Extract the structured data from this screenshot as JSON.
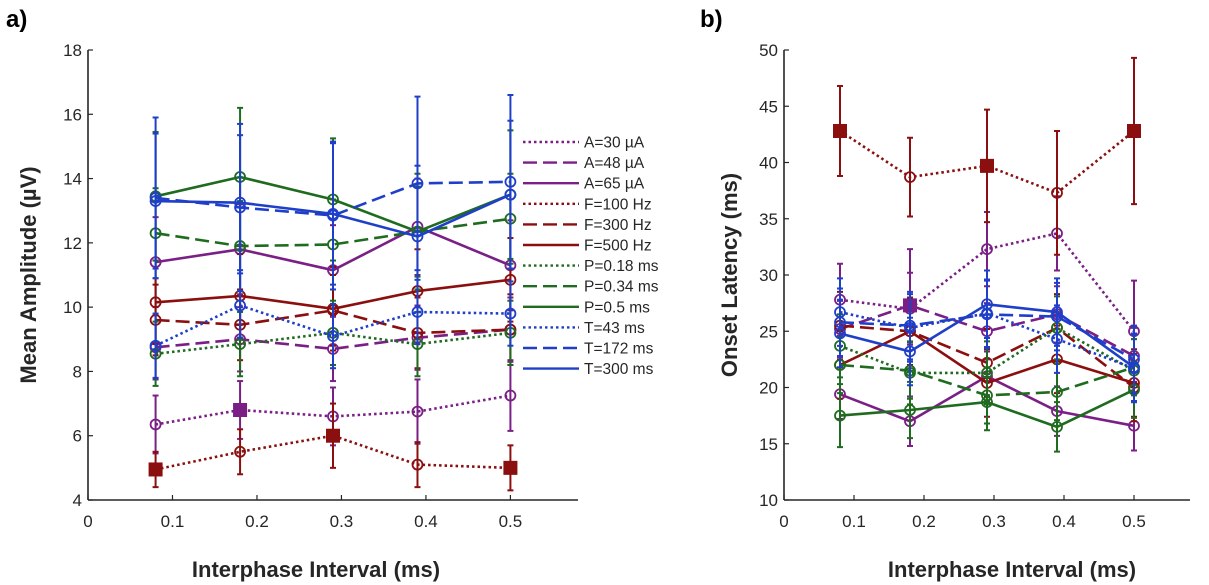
{
  "colors": {
    "A": "#7a1f86",
    "F": "#8b0f0f",
    "P": "#1f6b1f",
    "T": "#1f3fc9",
    "axis": "#262626"
  },
  "legend": [
    {
      "label": "A=30 µA",
      "color": "#7a1f86",
      "dash": "dotted"
    },
    {
      "label": "A=48 µA",
      "color": "#7a1f86",
      "dash": "dashed"
    },
    {
      "label": "A=65 µA",
      "color": "#7a1f86",
      "dash": "solid"
    },
    {
      "label": "F=100 Hz",
      "color": "#8b0f0f",
      "dash": "dotted"
    },
    {
      "label": "F=300 Hz",
      "color": "#8b0f0f",
      "dash": "dashed"
    },
    {
      "label": "F=500 Hz",
      "color": "#8b0f0f",
      "dash": "solid"
    },
    {
      "label": "P=0.18 ms",
      "color": "#1f6b1f",
      "dash": "dotted"
    },
    {
      "label": "P=0.34 ms",
      "color": "#1f6b1f",
      "dash": "dashed"
    },
    {
      "label": "P=0.5 ms",
      "color": "#1f6b1f",
      "dash": "solid"
    },
    {
      "label": "T=43 ms",
      "color": "#1f3fc9",
      "dash": "dotted"
    },
    {
      "label": "T=172 ms",
      "color": "#1f3fc9",
      "dash": "dashed"
    },
    {
      "label": "T=300 ms",
      "color": "#1f3fc9",
      "dash": "solid"
    }
  ],
  "chart_data": [
    {
      "type": "line",
      "panel_label": "a)",
      "xlabel": "Interphase Interval (ms)",
      "ylabel": "Mean Amplitude (µV)",
      "xlim": [
        0,
        0.58
      ],
      "ylim": [
        4,
        18
      ],
      "xticks": [
        0,
        0.1,
        0.2,
        0.3,
        0.4,
        0.5
      ],
      "xtick_labels": [
        "0",
        "0.1",
        "0.2",
        "0.3",
        "0.4",
        "0.5"
      ],
      "yticks": [
        4,
        6,
        8,
        10,
        12,
        14,
        16,
        18
      ],
      "ytick_labels": [
        "4",
        "6",
        "8",
        "10",
        "12",
        "14",
        "16",
        "18"
      ],
      "x": [
        0.08,
        0.18,
        0.29,
        0.39,
        0.5
      ],
      "series": [
        {
          "name": "A=30 µA",
          "color": "#7a1f86",
          "dash": "dotted",
          "y": [
            6.35,
            6.8,
            6.6,
            6.75,
            7.25
          ],
          "err": [
            0.9,
            0.9,
            0.9,
            1.0,
            1.1
          ],
          "square": [
            1
          ]
        },
        {
          "name": "A=48 µA",
          "color": "#7a1f86",
          "dash": "dashed",
          "y": [
            8.75,
            9.0,
            8.7,
            9.05,
            9.3
          ],
          "err": [
            1.0,
            1.0,
            1.0,
            1.0,
            1.0
          ],
          "square": []
        },
        {
          "name": "A=65 µA",
          "color": "#7a1f86",
          "dash": "solid",
          "y": [
            11.4,
            11.8,
            11.15,
            12.5,
            11.3
          ],
          "err": [
            1.4,
            1.4,
            1.4,
            1.5,
            1.4
          ],
          "square": []
        },
        {
          "name": "F=100 Hz",
          "color": "#8b0f0f",
          "dash": "dotted",
          "y": [
            4.95,
            5.5,
            6.0,
            5.1,
            5.0
          ],
          "err": [
            0.55,
            0.7,
            1.0,
            0.7,
            0.7
          ],
          "square": [
            0,
            2,
            4
          ]
        },
        {
          "name": "F=300 Hz",
          "color": "#8b0f0f",
          "dash": "dashed",
          "y": [
            9.6,
            9.45,
            9.9,
            9.2,
            9.3
          ],
          "err": [
            1.1,
            1.1,
            1.1,
            1.1,
            1.1
          ],
          "square": []
        },
        {
          "name": "F=500 Hz",
          "color": "#8b0f0f",
          "dash": "solid",
          "y": [
            10.15,
            10.35,
            9.95,
            10.5,
            10.85
          ],
          "err": [
            1.3,
            1.3,
            1.3,
            1.3,
            1.3
          ],
          "square": []
        },
        {
          "name": "P=0.18 ms",
          "color": "#1f6b1f",
          "dash": "dotted",
          "y": [
            8.55,
            8.85,
            9.2,
            8.85,
            9.2
          ],
          "err": [
            1.0,
            1.0,
            1.0,
            1.0,
            1.0
          ],
          "square": []
        },
        {
          "name": "P=0.34 ms",
          "color": "#1f6b1f",
          "dash": "dashed",
          "y": [
            12.3,
            11.9,
            11.95,
            12.35,
            12.75
          ],
          "err": [
            1.4,
            1.4,
            1.4,
            1.4,
            1.4
          ],
          "square": []
        },
        {
          "name": "P=0.5 ms",
          "color": "#1f6b1f",
          "dash": "solid",
          "y": [
            13.45,
            14.05,
            13.35,
            12.35,
            13.5
          ],
          "err": [
            2.0,
            2.15,
            1.9,
            1.8,
            2.0
          ],
          "square": []
        },
        {
          "name": "T=43 ms",
          "color": "#1f3fc9",
          "dash": "dotted",
          "y": [
            8.8,
            10.05,
            9.1,
            9.85,
            9.8
          ],
          "err": [
            1.0,
            1.0,
            1.0,
            1.0,
            1.0
          ],
          "square": []
        },
        {
          "name": "T=172 ms",
          "color": "#1f3fc9",
          "dash": "dashed",
          "y": [
            13.4,
            13.1,
            12.85,
            13.85,
            13.9
          ],
          "err": [
            2.5,
            2.6,
            2.3,
            2.7,
            2.7
          ],
          "square": []
        },
        {
          "name": "T=300 ms",
          "color": "#1f3fc9",
          "dash": "solid",
          "y": [
            13.3,
            13.25,
            12.9,
            12.2,
            13.5
          ],
          "err": [
            2.1,
            2.1,
            2.2,
            2.2,
            2.3
          ],
          "square": []
        }
      ]
    },
    {
      "type": "line",
      "panel_label": "b)",
      "xlabel": "Interphase Interval (ms)",
      "ylabel": "Onset Latency (ms)",
      "xlim": [
        0,
        0.58
      ],
      "ylim": [
        10,
        50
      ],
      "xticks": [
        0,
        0.1,
        0.2,
        0.3,
        0.4,
        0.5
      ],
      "xtick_labels": [
        "0",
        "0.1",
        "0.2",
        "0.3",
        "0.4",
        "0.5"
      ],
      "yticks": [
        10,
        15,
        20,
        25,
        30,
        35,
        40,
        45,
        50
      ],
      "ytick_labels": [
        "10",
        "15",
        "20",
        "25",
        "30",
        "35",
        "40",
        "45",
        "50"
      ],
      "x": [
        0.08,
        0.18,
        0.29,
        0.39,
        0.5
      ],
      "series": [
        {
          "name": "A=30 µA",
          "color": "#7a1f86",
          "dash": "dotted",
          "y": [
            27.8,
            27.0,
            32.3,
            33.7,
            25.0
          ],
          "err": [
            3.2,
            3.2,
            3.3,
            3.3,
            4.5
          ],
          "square": []
        },
        {
          "name": "A=48 µA",
          "color": "#7a1f86",
          "dash": "dashed",
          "y": [
            25.2,
            27.3,
            25.0,
            26.5,
            22.8
          ],
          "err": [
            2.5,
            5.0,
            2.5,
            2.5,
            2.5
          ],
          "square": [
            1
          ]
        },
        {
          "name": "A=65 µA",
          "color": "#7a1f86",
          "dash": "solid",
          "y": [
            19.4,
            17.0,
            21.0,
            17.9,
            16.6
          ],
          "err": [
            2.2,
            2.2,
            2.2,
            2.2,
            2.2
          ],
          "square": []
        },
        {
          "name": "F=100 Hz",
          "color": "#8b0f0f",
          "dash": "dotted",
          "y": [
            42.8,
            38.7,
            39.7,
            37.3,
            42.8
          ],
          "err": [
            4.0,
            3.5,
            5.0,
            5.5,
            6.5
          ],
          "square": [
            0,
            2,
            4
          ]
        },
        {
          "name": "F=300 Hz",
          "color": "#8b0f0f",
          "dash": "dashed",
          "y": [
            25.5,
            25.0,
            22.2,
            25.3,
            20.0
          ],
          "err": [
            3.0,
            3.0,
            3.0,
            3.0,
            3.0
          ],
          "square": []
        },
        {
          "name": "F=500 Hz",
          "color": "#8b0f0f",
          "dash": "solid",
          "y": [
            22.0,
            25.0,
            20.4,
            22.5,
            20.4
          ],
          "err": [
            3.0,
            3.0,
            3.0,
            3.0,
            3.0
          ],
          "square": []
        },
        {
          "name": "P=0.18 ms",
          "color": "#1f6b1f",
          "dash": "dotted",
          "y": [
            23.7,
            21.3,
            21.3,
            25.3,
            21.5
          ],
          "err": [
            2.8,
            2.8,
            2.8,
            2.8,
            2.8
          ],
          "square": []
        },
        {
          "name": "P=0.34 ms",
          "color": "#1f6b1f",
          "dash": "dashed",
          "y": [
            22.0,
            21.5,
            19.3,
            19.6,
            21.8
          ],
          "err": [
            2.5,
            2.5,
            2.5,
            2.5,
            2.5
          ],
          "square": []
        },
        {
          "name": "P=0.5 ms",
          "color": "#1f6b1f",
          "dash": "solid",
          "y": [
            17.5,
            18.0,
            18.7,
            16.5,
            19.8
          ],
          "err": [
            2.8,
            2.5,
            2.5,
            2.2,
            2.5
          ],
          "square": []
        },
        {
          "name": "T=43 ms",
          "color": "#1f3fc9",
          "dash": "dotted",
          "y": [
            26.7,
            25.3,
            26.6,
            24.3,
            21.7
          ],
          "err": [
            3.0,
            3.0,
            3.0,
            3.0,
            3.0
          ],
          "square": []
        },
        {
          "name": "T=172 ms",
          "color": "#1f3fc9",
          "dash": "dashed",
          "y": [
            25.8,
            25.5,
            26.5,
            26.3,
            22.5
          ],
          "err": [
            3.0,
            3.0,
            3.0,
            3.0,
            3.0
          ],
          "square": []
        },
        {
          "name": "T=300 ms",
          "color": "#1f3fc9",
          "dash": "solid",
          "y": [
            24.8,
            23.2,
            27.4,
            26.7,
            21.8
          ],
          "err": [
            3.0,
            3.0,
            3.0,
            3.0,
            3.0
          ],
          "square": []
        }
      ]
    }
  ]
}
